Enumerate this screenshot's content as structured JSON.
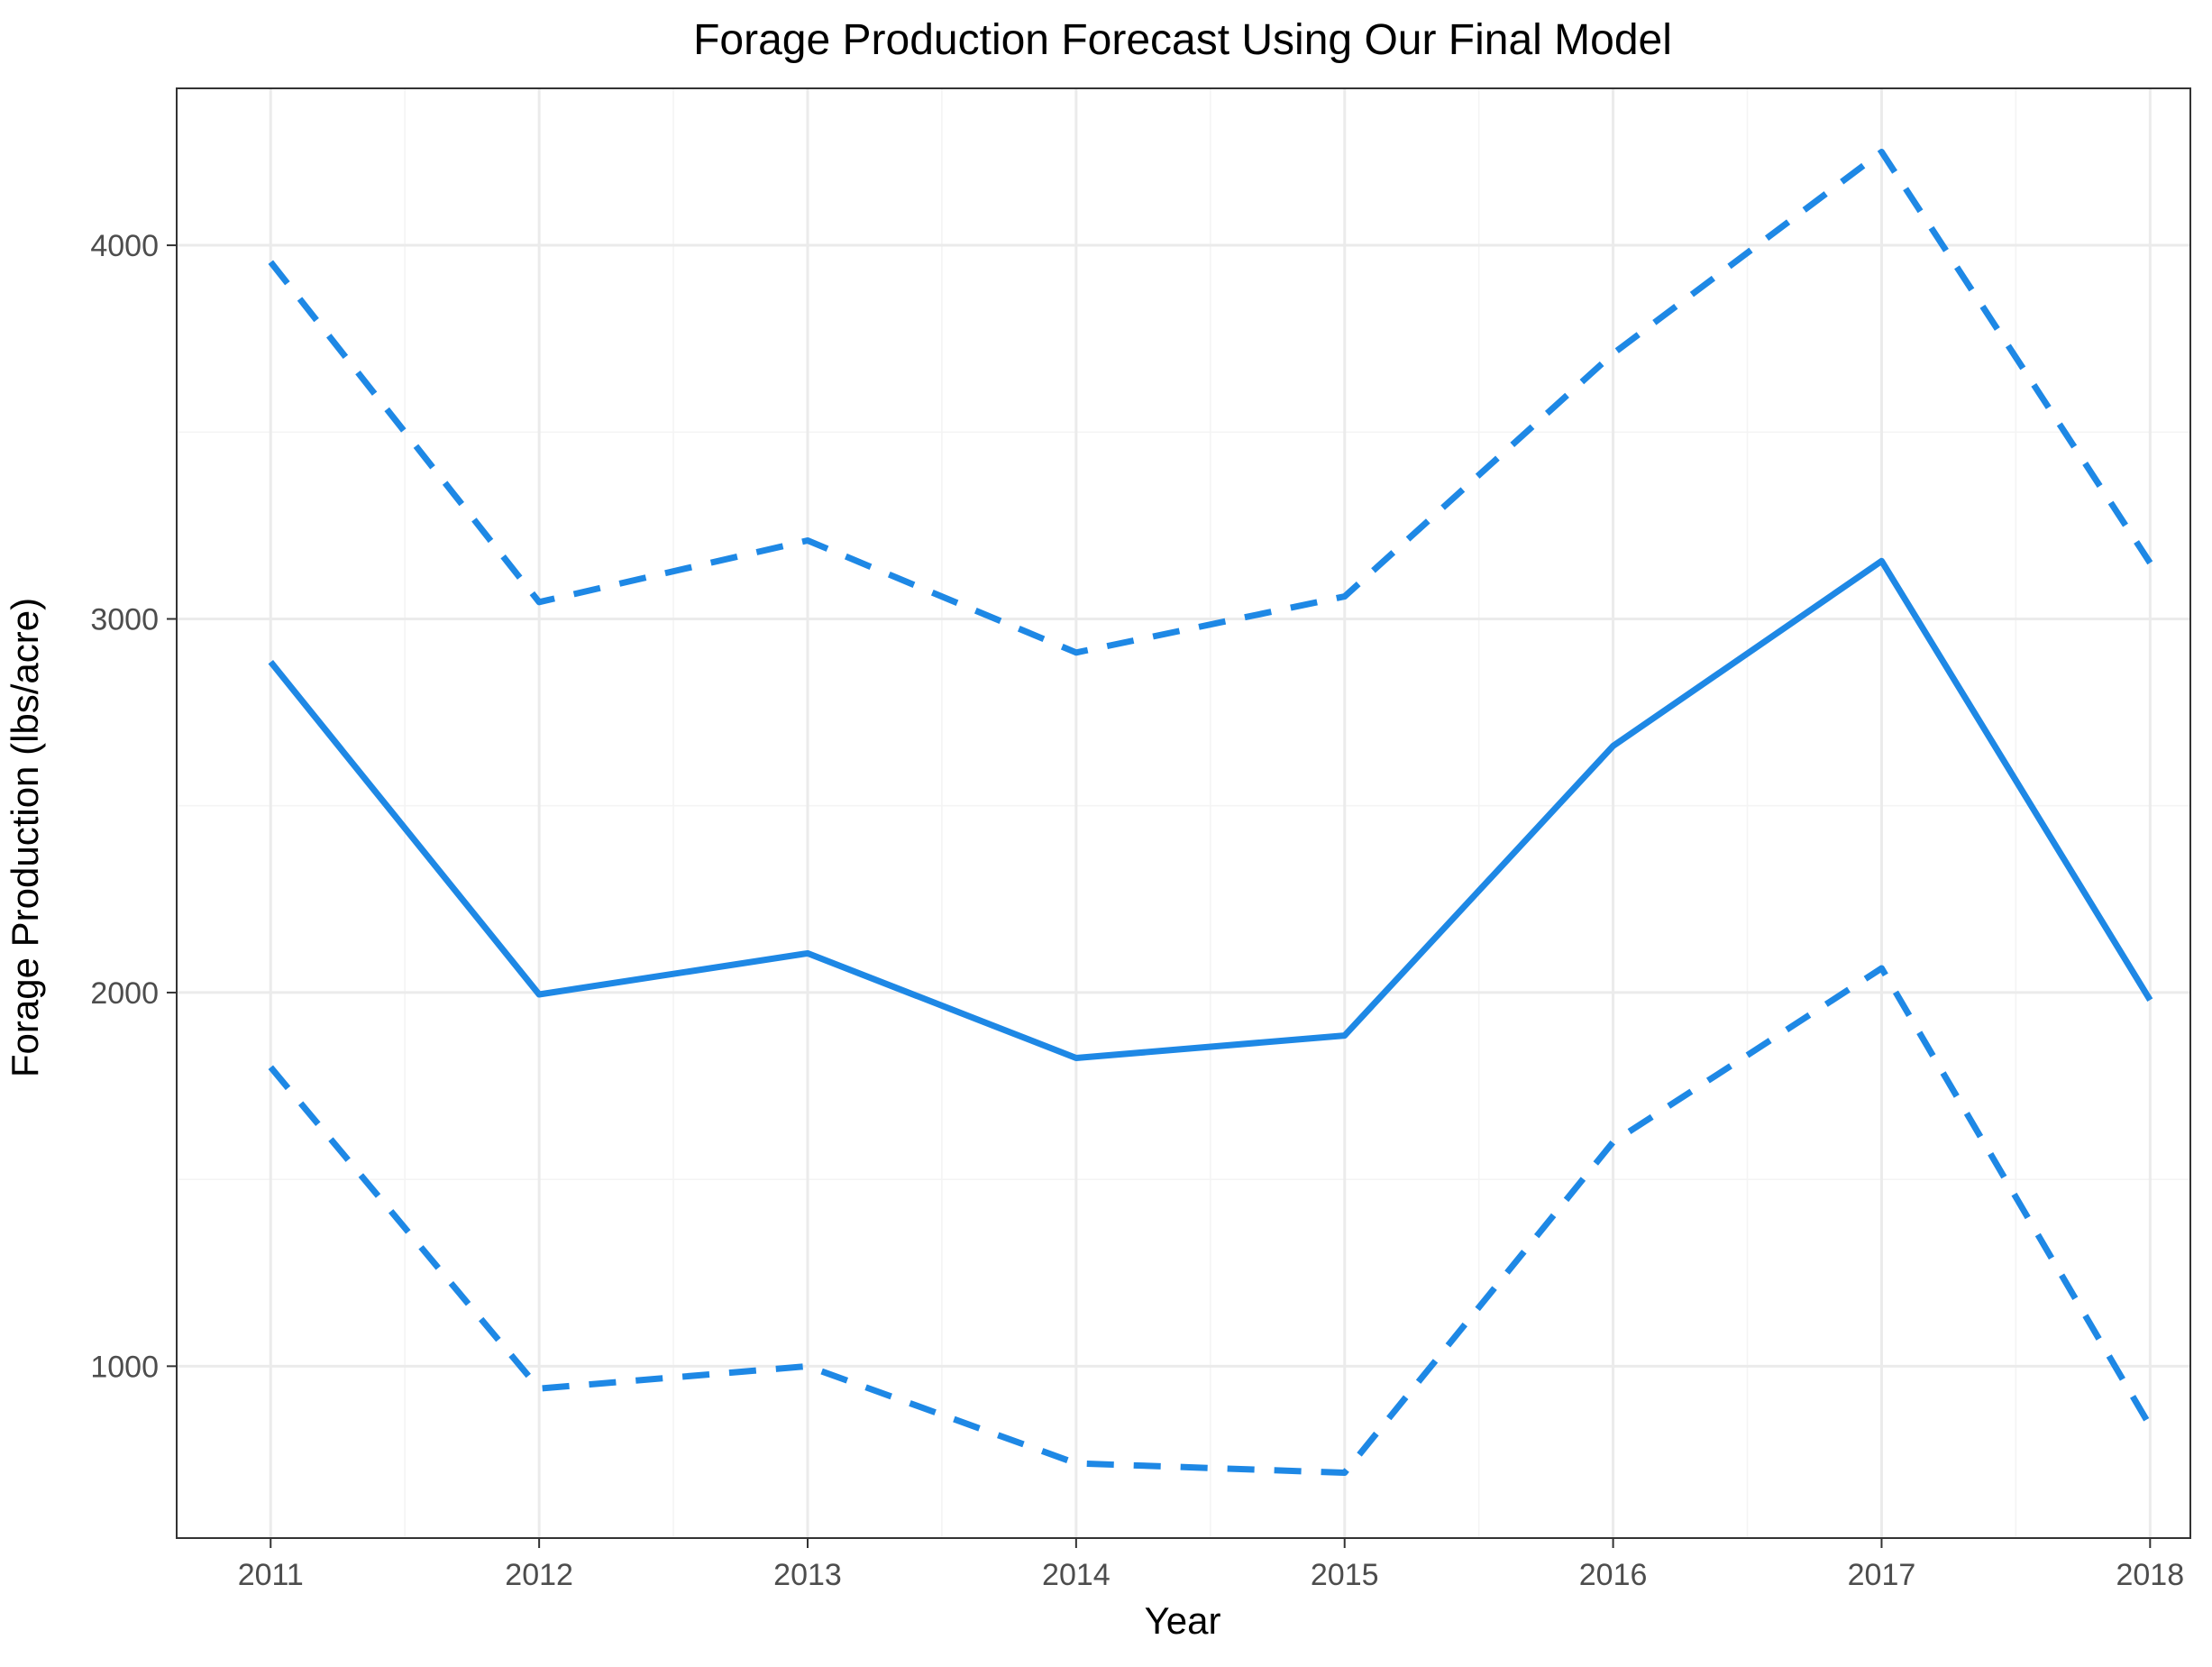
{
  "chart_data": {
    "type": "line",
    "title": "Forage Production Forecast Using Our Final Model",
    "xlabel": "Year",
    "ylabel": "Forage Production (lbs/acre)",
    "x": [
      2011,
      2012,
      2013,
      2014,
      2015,
      2016,
      2017,
      2018
    ],
    "xlim": [
      2010.65,
      2018.15
    ],
    "ylim": [
      540,
      4420
    ],
    "xticks": [
      "2011",
      "2012",
      "2013",
      "2014",
      "2015",
      "2016",
      "2017",
      "2018"
    ],
    "yticks": [
      "1000",
      "2000",
      "3000",
      "4000"
    ],
    "grid": true,
    "legend": "none",
    "series": [
      {
        "role": "forecast",
        "style": "solid",
        "color": "#1e88e5",
        "values": [
          2885,
          1995,
          2105,
          1825,
          1885,
          2660,
          3155,
          1980
        ]
      },
      {
        "role": "upper",
        "style": "dashed",
        "color": "#1e88e5",
        "values": [
          3955,
          3045,
          3210,
          2910,
          3060,
          3710,
          4250,
          3150
        ]
      },
      {
        "role": "lower",
        "style": "dashed",
        "color": "#1e88e5",
        "values": [
          1800,
          940,
          1000,
          740,
          715,
          1600,
          2065,
          840
        ]
      }
    ]
  }
}
